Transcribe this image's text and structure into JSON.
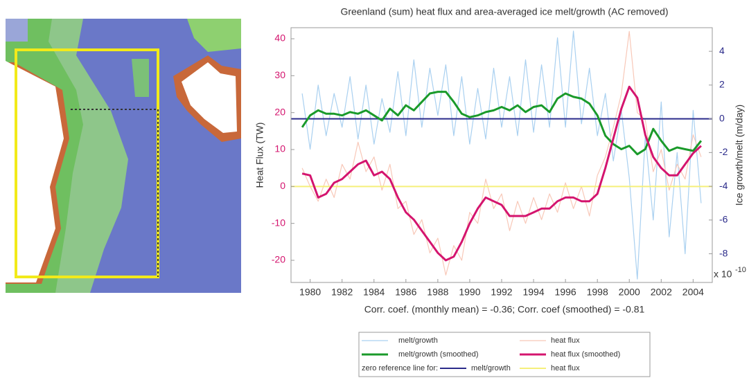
{
  "chart_data": {
    "type": "line",
    "title": "Greenland (sum) heat flux and area-averaged ice melt/growth (AC removed)",
    "footnote": "Corr. coef. (monthly mean) = -0.36; Corr. coef (smoothed) = -0.81",
    "y_label": "Heat Flux (TW)",
    "y2_label": "Ice growth/melt (m/day)",
    "y2_multiplier": {
      "base": "x 10",
      "exponent": "-10"
    },
    "xlim": [
      1978.8,
      2005.2
    ],
    "xticks": [
      1980,
      1982,
      1984,
      1986,
      1988,
      1990,
      1992,
      1994,
      1996,
      1998,
      2000,
      2002,
      2004
    ],
    "ylim": [
      -26,
      43
    ],
    "yticks": [
      -20,
      -10,
      0,
      10,
      20,
      30,
      40
    ],
    "y2lim": [
      -9.7,
      5.4
    ],
    "y2ticks": [
      -8,
      -6,
      -4,
      -2,
      0,
      2,
      4
    ],
    "x": [
      1979.5,
      1980,
      1980.5,
      1981,
      1981.5,
      1982,
      1982.5,
      1983,
      1983.5,
      1984,
      1984.5,
      1985,
      1985.5,
      1986,
      1986.5,
      1987,
      1987.5,
      1988,
      1988.5,
      1989,
      1989.5,
      1990,
      1990.5,
      1991,
      1991.5,
      1992,
      1992.5,
      1993,
      1993.5,
      1994,
      1994.5,
      1995,
      1995.5,
      1996,
      1996.5,
      1997,
      1997.5,
      1998,
      1998.5,
      1999,
      1999.5,
      2000,
      2000.5,
      2001,
      2001.5,
      2002,
      2002.5,
      2003,
      2003.5,
      2004,
      2004.5
    ],
    "series": [
      {
        "name": "melt/growth",
        "color": "#a9d0f0",
        "width": 1.2,
        "axis": "y2",
        "values": [
          1.5,
          -1.8,
          2,
          -1,
          1.5,
          -0.5,
          2.5,
          -1.2,
          2,
          -1.5,
          1.2,
          -0.8,
          2.8,
          -1,
          3.5,
          -0.5,
          3,
          0.2,
          3.2,
          -1,
          2.5,
          -1.5,
          1.8,
          -1.2,
          3,
          -0.5,
          2.5,
          -1,
          3.5,
          -0.8,
          3.2,
          -0.5,
          4.8,
          -0.5,
          5.2,
          -0.3,
          3,
          -1,
          1.5,
          -2.5,
          0.5,
          -3.5,
          -9.5,
          -1,
          -6,
          1,
          -7,
          -2,
          -8,
          0.5,
          -5
        ]
      },
      {
        "name": "heat flux",
        "color": "#f8c8b8",
        "width": 1.2,
        "axis": "y",
        "values": [
          5,
          0,
          -4,
          2,
          -3,
          6,
          2,
          12,
          4,
          8,
          -1,
          6,
          -6,
          -4,
          -13,
          -9,
          -18,
          -14,
          -24,
          -16,
          -20,
          -7,
          -10,
          2,
          -6,
          -2,
          -12,
          -4,
          -10,
          -3,
          -9,
          -2,
          -7,
          1,
          -6,
          0,
          -8,
          3,
          8,
          16,
          25,
          42,
          20,
          18,
          4,
          10,
          -1,
          6,
          2,
          14,
          8
        ]
      },
      {
        "name": "melt/growth (smoothed)",
        "color": "#1a9a2a",
        "width": 3,
        "axis": "y2",
        "values": [
          -0.5,
          0.2,
          0.5,
          0.3,
          0.3,
          0.2,
          0.4,
          0.3,
          0.5,
          0.2,
          -0.1,
          0.6,
          0.2,
          0.8,
          0.5,
          1.0,
          1.5,
          1.6,
          1.6,
          1.0,
          0.3,
          0.1,
          0.2,
          0.4,
          0.5,
          0.7,
          0.5,
          0.8,
          0.4,
          0.7,
          0.8,
          0.4,
          1.2,
          1.5,
          1.3,
          1.2,
          0.9,
          0.2,
          -1.0,
          -1.5,
          -1.8,
          -1.6,
          -2.1,
          -1.8,
          -0.6,
          -1.3,
          -1.9,
          -1.7,
          -1.8,
          -1.9,
          -1.3
        ]
      },
      {
        "name": "heat flux (smoothed)",
        "color": "#d4146e",
        "width": 3,
        "axis": "y",
        "values": [
          3.5,
          3,
          -3,
          -2,
          1,
          2,
          4,
          6,
          7,
          3,
          4,
          2,
          -3,
          -7,
          -9,
          -12,
          -15,
          -18,
          -20,
          -19,
          -15,
          -10,
          -6,
          -3,
          -4,
          -5,
          -8,
          -8,
          -8,
          -7,
          -6,
          -6,
          -4,
          -3,
          -3,
          -4,
          -4,
          -2,
          5,
          13,
          21,
          27,
          24,
          14,
          8,
          5,
          3,
          3,
          6,
          9,
          11
        ]
      }
    ],
    "reference_label": "zero reference line for:",
    "reference_lines": [
      {
        "name": "melt/growth",
        "color": "#2a2a8a",
        "axis": "y2",
        "value": 0
      },
      {
        "name": "heat flux",
        "color": "#f5ef7a",
        "axis": "y",
        "value": 0
      }
    ],
    "y_color": "#d4146e",
    "y2_color": "#2a2a8a"
  }
}
